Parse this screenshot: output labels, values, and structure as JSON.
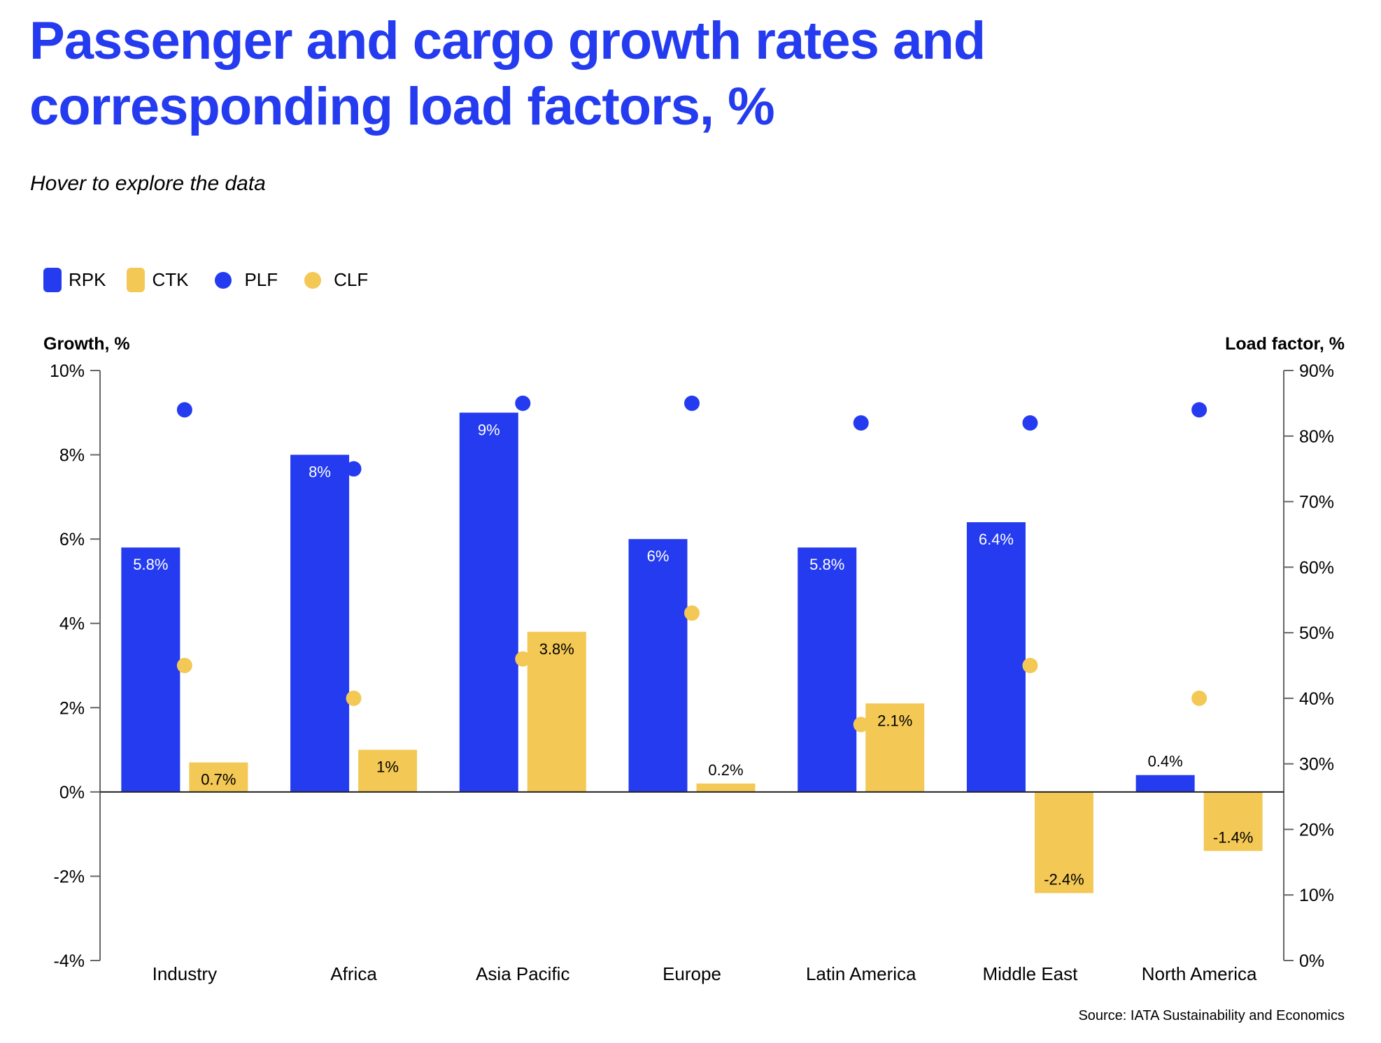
{
  "page": {
    "title_lines": [
      "Passenger and cargo growth rates and",
      "corresponding load factors, %"
    ],
    "subtitle": "Hover to explore the data",
    "source": "Source: IATA Sustainability and Economics"
  },
  "colors": {
    "rpk": "#243bef",
    "ctk": "#f3c855",
    "plf": "#243bef",
    "clf": "#f3c855",
    "title": "#243bef"
  },
  "legend": [
    {
      "key": "rpk",
      "label": "RPK",
      "shape": "bar"
    },
    {
      "key": "ctk",
      "label": "CTK",
      "shape": "bar"
    },
    {
      "key": "plf",
      "label": "PLF",
      "shape": "dot"
    },
    {
      "key": "clf",
      "label": "CLF",
      "shape": "dot"
    }
  ],
  "chart_data": {
    "type": "bar",
    "title": "Passenger and cargo growth rates and corresponding load factors, %",
    "subtitle": "Hover to explore the data",
    "categories": [
      "Industry",
      "Africa",
      "Asia Pacific",
      "Europe",
      "Latin America",
      "Middle East",
      "North America"
    ],
    "series": [
      {
        "name": "RPK",
        "type": "bar",
        "axis": "left",
        "values": [
          5.8,
          8,
          9,
          6,
          5.8,
          6.4,
          0.4
        ],
        "labels": [
          "5.8%",
          "8%",
          "9%",
          "6%",
          "5.8%",
          "6.4%",
          "0.4%"
        ]
      },
      {
        "name": "CTK",
        "type": "bar",
        "axis": "left",
        "values": [
          0.7,
          1,
          3.8,
          0.2,
          2.1,
          -2.4,
          -1.4
        ],
        "labels": [
          "0.7%",
          "1%",
          "3.8%",
          "0.2%",
          "2.1%",
          "-2.4%",
          "-1.4%"
        ]
      },
      {
        "name": "PLF",
        "type": "scatter",
        "axis": "right",
        "values": [
          84,
          75,
          85,
          85,
          82,
          82,
          84
        ]
      },
      {
        "name": "CLF",
        "type": "scatter",
        "axis": "right",
        "values": [
          45,
          40,
          46,
          53,
          36,
          45,
          40
        ]
      }
    ],
    "ylabel": "Growth, %",
    "ylabel_right": "Load factor, %",
    "xlabel": "",
    "ylim": [
      -4,
      10
    ],
    "ylim_right": [
      0,
      90
    ],
    "yticks": [
      "10%",
      "8%",
      "6%",
      "4%",
      "2%",
      "0%",
      "-2%",
      "-4%"
    ],
    "yticks_values": [
      10,
      8,
      6,
      4,
      2,
      0,
      -2,
      -4
    ],
    "yticks_right": [
      "90%",
      "80%",
      "70%",
      "60%",
      "50%",
      "40%",
      "30%",
      "20%",
      "10%",
      "0%"
    ],
    "yticks_right_values": [
      90,
      80,
      70,
      60,
      50,
      40,
      30,
      20,
      10,
      0
    ],
    "grid": false,
    "legend_position": "top-left",
    "source": "Source: IATA Sustainability and Economics"
  }
}
